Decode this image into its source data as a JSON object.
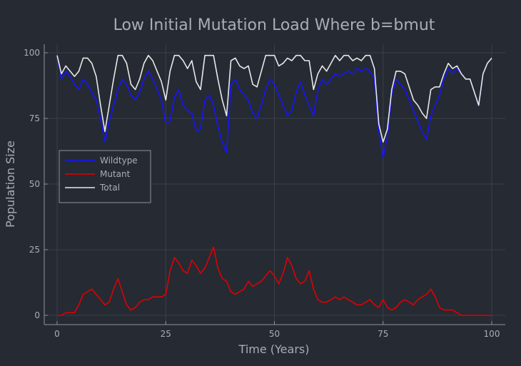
{
  "chart_data": {
    "type": "line",
    "title": "Low Initial Mutation Load Where b=bmut",
    "xlabel": "Time (Years)",
    "ylabel": "Population Size",
    "xlim": [
      0,
      100
    ],
    "ylim": [
      0,
      100
    ],
    "xticks": [
      0,
      25,
      50,
      75,
      100
    ],
    "yticks": [
      0,
      25,
      50,
      75,
      100
    ],
    "grid": true,
    "legend": "left-middle",
    "colors": {
      "background": "#262a33",
      "axis": "#8e939c",
      "grid": "#3a3f49"
    },
    "series": [
      {
        "name": "Wildtype",
        "color": "#1515ff",
        "x": [
          0,
          1,
          2,
          3,
          4,
          5,
          6,
          7,
          8,
          9,
          10,
          11,
          12,
          13,
          14,
          15,
          16,
          17,
          18,
          19,
          20,
          21,
          22,
          23,
          24,
          25,
          26,
          27,
          28,
          29,
          30,
          31,
          32,
          33,
          34,
          35,
          36,
          37,
          38,
          39,
          40,
          41,
          42,
          43,
          44,
          45,
          46,
          47,
          48,
          49,
          50,
          51,
          52,
          53,
          54,
          55,
          56,
          57,
          58,
          59,
          60,
          61,
          62,
          63,
          64,
          65,
          66,
          67,
          68,
          69,
          70,
          71,
          72,
          73,
          74,
          75,
          76,
          77,
          78,
          79,
          80,
          81,
          82,
          83,
          84,
          85,
          86,
          87,
          88,
          89,
          90,
          91,
          92,
          93,
          94,
          95,
          96,
          97,
          98,
          99,
          100
        ],
        "values": [
          99,
          90,
          93,
          91,
          88,
          86,
          90,
          88,
          85,
          82,
          75,
          66,
          74,
          80,
          86,
          90,
          88,
          84,
          82,
          85,
          90,
          93,
          90,
          86,
          82,
          73,
          74,
          83,
          86,
          80,
          78,
          77,
          70,
          71,
          82,
          84,
          80,
          72,
          66,
          62,
          88,
          90,
          86,
          84,
          82,
          77,
          75,
          80,
          86,
          90,
          88,
          84,
          80,
          76,
          78,
          85,
          89,
          84,
          80,
          76,
          86,
          90,
          88,
          90,
          92,
          91,
          92,
          93,
          92,
          94,
          93,
          94,
          93,
          90,
          70,
          60,
          68,
          84,
          90,
          88,
          86,
          82,
          78,
          74,
          70,
          67,
          76,
          80,
          84,
          90,
          94,
          92,
          94,
          92,
          90,
          90,
          85,
          80,
          92,
          96,
          98
        ]
      },
      {
        "name": "Mutant",
        "color": "#e00000",
        "x": [
          0,
          1,
          2,
          3,
          4,
          5,
          6,
          7,
          8,
          9,
          10,
          11,
          12,
          13,
          14,
          15,
          16,
          17,
          18,
          19,
          20,
          21,
          22,
          23,
          24,
          25,
          26,
          27,
          28,
          29,
          30,
          31,
          32,
          33,
          34,
          35,
          36,
          37,
          38,
          39,
          40,
          41,
          42,
          43,
          44,
          45,
          46,
          47,
          48,
          49,
          50,
          51,
          52,
          53,
          54,
          55,
          56,
          57,
          58,
          59,
          60,
          61,
          62,
          63,
          64,
          65,
          66,
          67,
          68,
          69,
          70,
          71,
          72,
          73,
          74,
          75,
          76,
          77,
          78,
          79,
          80,
          81,
          82,
          83,
          84,
          85,
          86,
          87,
          88,
          89,
          90,
          91,
          92,
          93,
          94,
          95,
          96,
          97,
          98,
          99,
          100
        ],
        "values": [
          0,
          0,
          1,
          1,
          1,
          4,
          8,
          9,
          10,
          8,
          6,
          4,
          5,
          10,
          14,
          9,
          4,
          2,
          3,
          5,
          6,
          6,
          7,
          7,
          7,
          8,
          17,
          22,
          20,
          17,
          16,
          21,
          19,
          16,
          18,
          22,
          26,
          18,
          14,
          13,
          9,
          8,
          9,
          10,
          13,
          11,
          12,
          13,
          15,
          17,
          15,
          12,
          16,
          22,
          19,
          14,
          12,
          13,
          17,
          10,
          6,
          5,
          5,
          6,
          7,
          6,
          7,
          6,
          5,
          4,
          4,
          5,
          6,
          4,
          3,
          6,
          3,
          2,
          3,
          5,
          6,
          5,
          4,
          6,
          7,
          8,
          10,
          7,
          3,
          2,
          2,
          2,
          1,
          0,
          0,
          0,
          0,
          0,
          0,
          0,
          0
        ]
      },
      {
        "name": "Total",
        "color": "#e8e8e8",
        "x": [
          0,
          1,
          2,
          3,
          4,
          5,
          6,
          7,
          8,
          9,
          10,
          11,
          12,
          13,
          14,
          15,
          16,
          17,
          18,
          19,
          20,
          21,
          22,
          23,
          24,
          25,
          26,
          27,
          28,
          29,
          30,
          31,
          32,
          33,
          34,
          35,
          36,
          37,
          38,
          39,
          40,
          41,
          42,
          43,
          44,
          45,
          46,
          47,
          48,
          49,
          50,
          51,
          52,
          53,
          54,
          55,
          56,
          57,
          58,
          59,
          60,
          61,
          62,
          63,
          64,
          65,
          66,
          67,
          68,
          69,
          70,
          71,
          72,
          73,
          74,
          75,
          76,
          77,
          78,
          79,
          80,
          81,
          82,
          83,
          84,
          85,
          86,
          87,
          88,
          89,
          90,
          91,
          92,
          93,
          94,
          95,
          96,
          97,
          98,
          99,
          100
        ],
        "values": [
          99,
          92,
          95,
          93,
          91,
          93,
          98,
          98,
          96,
          91,
          80,
          70,
          80,
          90,
          99,
          99,
          96,
          88,
          86,
          90,
          96,
          99,
          97,
          93,
          89,
          82,
          93,
          99,
          99,
          97,
          94,
          97,
          89,
          86,
          99,
          99,
          99,
          90,
          82,
          76,
          97,
          98,
          95,
          94,
          95,
          88,
          87,
          93,
          99,
          99,
          99,
          95,
          96,
          98,
          97,
          99,
          99,
          97,
          97,
          86,
          92,
          95,
          93,
          96,
          99,
          97,
          99,
          99,
          97,
          98,
          97,
          99,
          99,
          94,
          73,
          66,
          71,
          86,
          93,
          93,
          92,
          87,
          82,
          80,
          77,
          75,
          86,
          87,
          87,
          92,
          96,
          94,
          95,
          92,
          90,
          90,
          85,
          80,
          92,
          96,
          98
        ]
      }
    ]
  }
}
